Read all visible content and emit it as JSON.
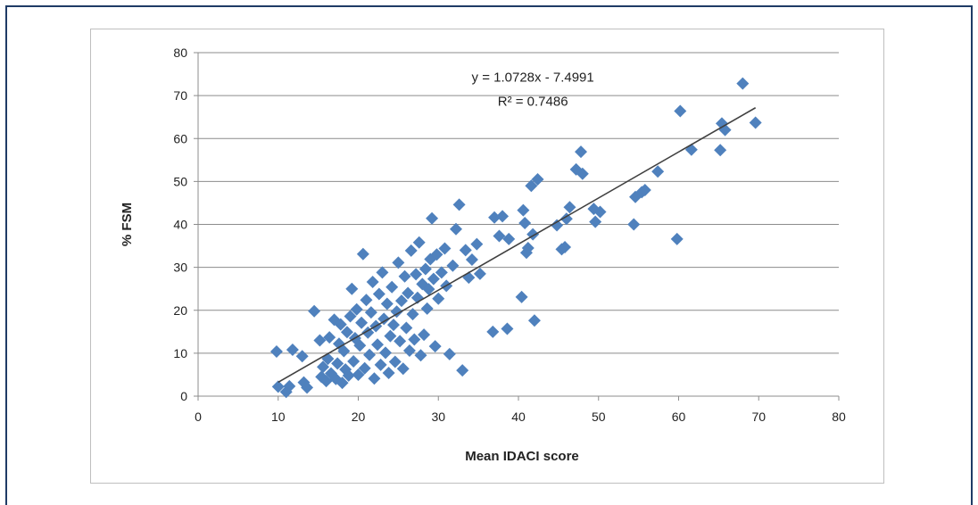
{
  "chart_data": {
    "type": "scatter",
    "title": "",
    "xlabel": "Mean IDACI score",
    "ylabel": "% FSM",
    "xlim": [
      0,
      80
    ],
    "ylim": [
      0,
      80
    ],
    "xticks": [
      0,
      10,
      20,
      30,
      40,
      50,
      60,
      70,
      80
    ],
    "yticks": [
      0,
      10,
      20,
      30,
      40,
      50,
      60,
      70,
      80
    ],
    "grid": "horizontal",
    "legend": "none",
    "marker": "diamond",
    "marker_color": "#4f81bd",
    "trendline": {
      "type": "linear",
      "slope": 1.0728,
      "intercept": -7.4991,
      "x_range": [
        10,
        69.6
      ],
      "equation_label": "y = 1.0728x - 7.4991",
      "r2_label": "R² = 0.7486",
      "color": "#404040"
    },
    "series": [
      {
        "points": [
          [
            9.8,
            10.4
          ],
          [
            10.0,
            2.2
          ],
          [
            11.0,
            1.0
          ],
          [
            11.4,
            2.3
          ],
          [
            11.8,
            10.8
          ],
          [
            13.0,
            9.3
          ],
          [
            13.2,
            3.2
          ],
          [
            13.6,
            2.0
          ],
          [
            14.5,
            19.8
          ],
          [
            15.2,
            13.0
          ],
          [
            15.4,
            4.5
          ],
          [
            15.6,
            6.8
          ],
          [
            16.0,
            3.5
          ],
          [
            16.2,
            8.7
          ],
          [
            16.4,
            13.7
          ],
          [
            16.6,
            5.3
          ],
          [
            17.0,
            17.8
          ],
          [
            17.2,
            4.0
          ],
          [
            17.4,
            7.6
          ],
          [
            17.6,
            12.2
          ],
          [
            17.8,
            16.7
          ],
          [
            18.0,
            3.1
          ],
          [
            18.2,
            10.5
          ],
          [
            18.4,
            6.2
          ],
          [
            18.6,
            14.9
          ],
          [
            18.8,
            4.8
          ],
          [
            19.0,
            18.6
          ],
          [
            19.2,
            25.0
          ],
          [
            19.4,
            8.1
          ],
          [
            19.6,
            13.5
          ],
          [
            19.8,
            20.2
          ],
          [
            20.0,
            5.0
          ],
          [
            20.2,
            11.8
          ],
          [
            20.4,
            17.1
          ],
          [
            20.6,
            33.1
          ],
          [
            20.8,
            6.5
          ],
          [
            21.0,
            22.4
          ],
          [
            21.2,
            14.8
          ],
          [
            21.4,
            9.6
          ],
          [
            21.6,
            19.5
          ],
          [
            21.8,
            26.6
          ],
          [
            22.0,
            4.1
          ],
          [
            22.2,
            16.3
          ],
          [
            22.4,
            12.0
          ],
          [
            22.6,
            23.8
          ],
          [
            22.8,
            7.3
          ],
          [
            23.0,
            28.8
          ],
          [
            23.2,
            18.0
          ],
          [
            23.4,
            10.1
          ],
          [
            23.6,
            21.5
          ],
          [
            23.8,
            5.4
          ],
          [
            24.0,
            14.0
          ],
          [
            24.2,
            25.4
          ],
          [
            24.4,
            16.6
          ],
          [
            24.6,
            8.0
          ],
          [
            24.8,
            19.7
          ],
          [
            25.0,
            31.1
          ],
          [
            25.2,
            12.8
          ],
          [
            25.4,
            22.2
          ],
          [
            25.6,
            6.4
          ],
          [
            25.8,
            27.9
          ],
          [
            26.0,
            15.9
          ],
          [
            26.2,
            24.0
          ],
          [
            26.4,
            10.6
          ],
          [
            26.6,
            33.9
          ],
          [
            26.8,
            19.1
          ],
          [
            27.0,
            13.2
          ],
          [
            27.2,
            28.4
          ],
          [
            27.4,
            22.9
          ],
          [
            27.6,
            35.8
          ],
          [
            27.8,
            9.5
          ],
          [
            28.0,
            26.1
          ],
          [
            28.2,
            14.3
          ],
          [
            28.4,
            29.6
          ],
          [
            28.6,
            20.4
          ],
          [
            28.8,
            24.9
          ],
          [
            29.0,
            31.9
          ],
          [
            29.2,
            41.4
          ],
          [
            29.4,
            27.3
          ],
          [
            29.6,
            11.6
          ],
          [
            29.8,
            33.0
          ],
          [
            30.0,
            22.7
          ],
          [
            30.4,
            28.8
          ],
          [
            30.8,
            34.4
          ],
          [
            31.0,
            25.7
          ],
          [
            31.4,
            9.8
          ],
          [
            31.8,
            30.4
          ],
          [
            32.2,
            38.9
          ],
          [
            32.6,
            44.6
          ],
          [
            33.0,
            6.0
          ],
          [
            33.4,
            34.0
          ],
          [
            33.8,
            27.6
          ],
          [
            34.2,
            31.8
          ],
          [
            34.8,
            35.4
          ],
          [
            35.2,
            28.5
          ],
          [
            36.8,
            15.0
          ],
          [
            37.0,
            41.6
          ],
          [
            37.6,
            37.3
          ],
          [
            38.0,
            41.9
          ],
          [
            38.6,
            15.7
          ],
          [
            38.8,
            36.6
          ],
          [
            40.4,
            23.1
          ],
          [
            40.6,
            43.3
          ],
          [
            40.8,
            40.3
          ],
          [
            41.0,
            33.4
          ],
          [
            41.2,
            34.5
          ],
          [
            41.6,
            49.0
          ],
          [
            41.8,
            37.7
          ],
          [
            42.0,
            17.6
          ],
          [
            42.4,
            50.5
          ],
          [
            44.8,
            39.8
          ],
          [
            45.4,
            34.2
          ],
          [
            45.8,
            34.7
          ],
          [
            46.0,
            41.3
          ],
          [
            46.4,
            44.0
          ],
          [
            47.2,
            52.8
          ],
          [
            47.8,
            56.9
          ],
          [
            48.0,
            51.8
          ],
          [
            49.4,
            43.6
          ],
          [
            49.6,
            40.6
          ],
          [
            50.2,
            42.9
          ],
          [
            54.4,
            40.0
          ],
          [
            54.6,
            46.4
          ],
          [
            55.4,
            47.5
          ],
          [
            55.8,
            48.0
          ],
          [
            57.4,
            52.3
          ],
          [
            59.8,
            36.6
          ],
          [
            60.2,
            66.4
          ],
          [
            61.6,
            57.4
          ],
          [
            65.2,
            57.3
          ],
          [
            65.4,
            63.5
          ],
          [
            65.8,
            62.0
          ],
          [
            68.0,
            72.8
          ],
          [
            69.6,
            63.7
          ]
        ]
      }
    ]
  }
}
